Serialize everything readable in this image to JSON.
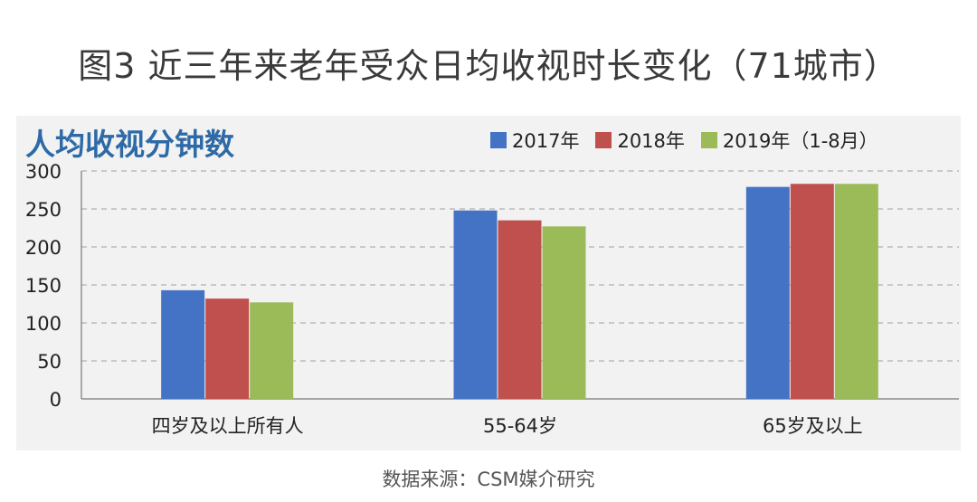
{
  "figure_title": "图3 近三年来老年受众日均收视时长变化（71城市）",
  "source_text": "数据来源：CSM媒介研究",
  "colors": {
    "s2017": "#4472c4",
    "s2018": "#c0504d",
    "s2019": "#9bbb59",
    "grid": "#a0a0a0",
    "title": "#2d6aa6"
  },
  "chart_data": {
    "type": "bar",
    "title": "人均收视分钟数",
    "xlabel": "",
    "ylabel": "",
    "ylim": [
      0,
      300
    ],
    "yticks": [
      0,
      50,
      100,
      150,
      200,
      250,
      300
    ],
    "grid": true,
    "legend_position": "top-right",
    "categories": [
      "四岁及以上所有人",
      "55-64岁",
      "65岁及以上"
    ],
    "series": [
      {
        "name": "2017年",
        "values": [
          143,
          248,
          279
        ]
      },
      {
        "name": "2018年",
        "values": [
          132,
          235,
          283
        ]
      },
      {
        "name": "2019年（1-8月）",
        "values": [
          127,
          227,
          283
        ]
      }
    ]
  }
}
